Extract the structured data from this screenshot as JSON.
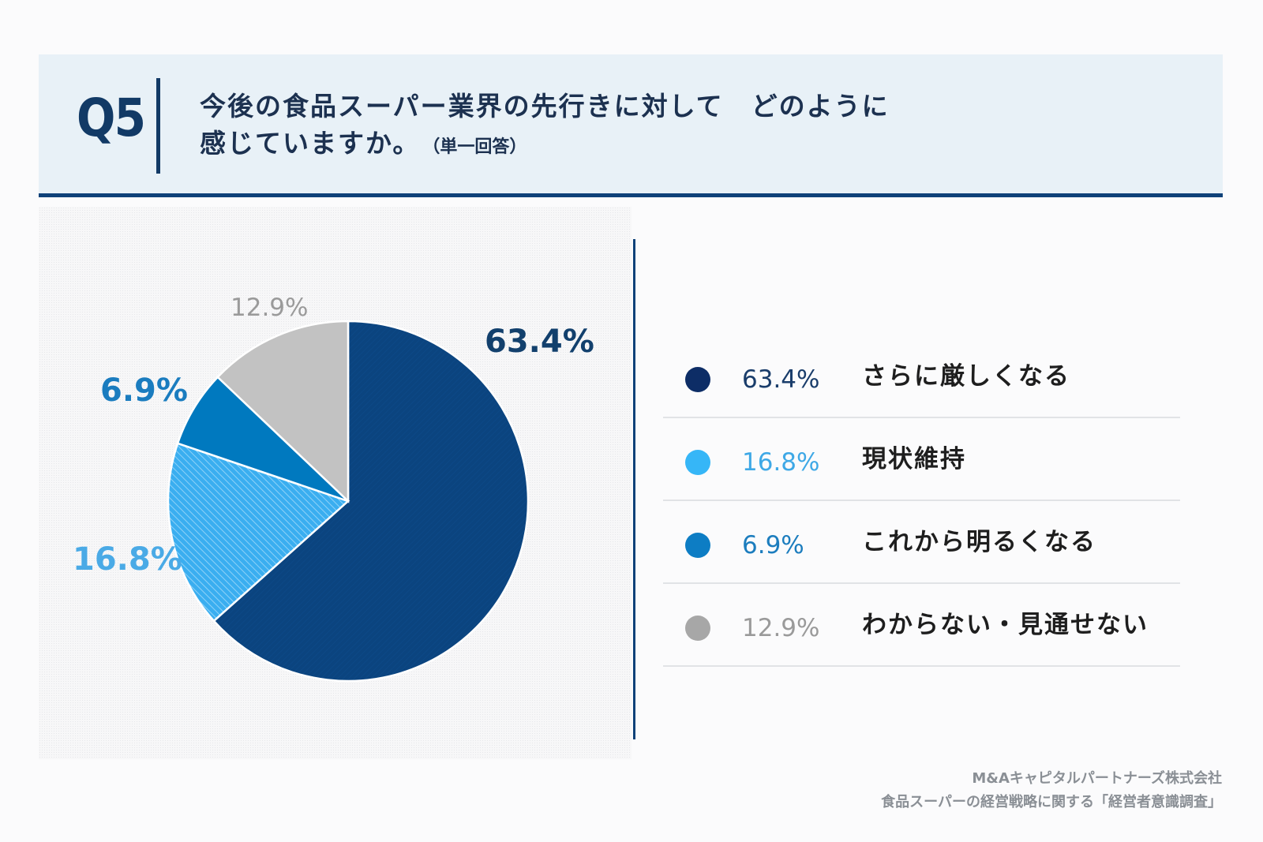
{
  "header": {
    "qnum": "Q5",
    "title_line1": "今後の食品スーパー業界の先行きに対して　どのように",
    "title_line2": "感じていますか。",
    "note": "（単一回答）"
  },
  "chart_data": {
    "type": "pie",
    "slices": [
      {
        "label": "さらに厳しくなる",
        "value": 63.4,
        "display": "63.4%",
        "color": "#0b447f",
        "label_color": "#12406d",
        "pattern": "diagonal"
      },
      {
        "label": "現状維持",
        "value": 16.8,
        "display": "16.8%",
        "color": "#3aaef0",
        "label_color": "#4aaae6",
        "pattern": "hatch"
      },
      {
        "label": "これから明るくなる",
        "value": 6.9,
        "display": "6.9%",
        "color": "#0079bf",
        "label_color": "#1a7cbf",
        "pattern": "none"
      },
      {
        "label": "わからない・見通せない",
        "value": 12.9,
        "display": "12.9%",
        "color": "#c2c2c2",
        "label_color": "#9a9a9a",
        "pattern": "none"
      }
    ],
    "start": "12 o'clock, clockwise"
  },
  "legend": [
    {
      "pct": "63.4%",
      "label": "さらに厳しくなる",
      "dot": "#0d2d66",
      "pct_color": "#1a3d6b"
    },
    {
      "pct": "16.8%",
      "label": "現状維持",
      "dot": "#36b6f7",
      "pct_color": "#3ea8e6"
    },
    {
      "pct": "6.9%",
      "label": "これから明るくなる",
      "dot": "#0d7dc4",
      "pct_color": "#1c7dbe"
    },
    {
      "pct": "12.9%",
      "label": "わからない・見通せない",
      "dot": "#a7a7a7",
      "pct_color": "#9a9a9a"
    }
  ],
  "source": {
    "line1": "M&Aキャピタルパートナーズ株式会社",
    "line2": "食品スーパーの経営戦略に関する「経営者意識調査」"
  }
}
